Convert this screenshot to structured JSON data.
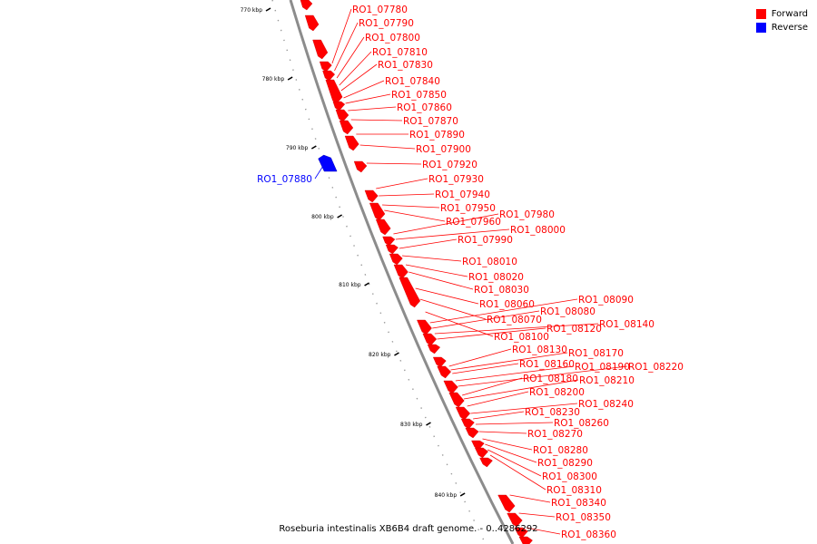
{
  "caption": "Roseburia intestinalis XB6B4 draft genome. - 0..4286292",
  "legend": [
    {
      "label": "Forward",
      "color": "#ff0000"
    },
    {
      "label": "Reverse",
      "color": "#0000ff"
    }
  ],
  "ticks": [
    "770 kbp",
    "780 kbp",
    "790 kbp",
    "800 kbp",
    "810 kbp",
    "820 kbp",
    "830 kbp",
    "840 kbp"
  ],
  "forward_genes": [
    "RO1_07780",
    "RO1_07790",
    "RO1_07800",
    "RO1_07810",
    "RO1_07830",
    "RO1_07840",
    "RO1_07850",
    "RO1_07860",
    "RO1_07870",
    "RO1_07890",
    "RO1_07900",
    "RO1_07920",
    "RO1_07930",
    "RO1_07940",
    "RO1_07950",
    "RO1_07980",
    "RO1_07960",
    "RO1_08000",
    "RO1_07990",
    "RO1_08010",
    "RO1_08020",
    "RO1_08030",
    "RO1_08090",
    "RO1_08060",
    "RO1_08080",
    "RO1_08070",
    "RO1_08140",
    "RO1_08120",
    "RO1_08100",
    "RO1_08130",
    "RO1_08170",
    "RO1_08160",
    "RO1_08190",
    "RO1_08220",
    "RO1_08180",
    "RO1_08210",
    "RO1_08200",
    "RO1_08240",
    "RO1_08230",
    "RO1_08260",
    "RO1_08270",
    "RO1_08280",
    "RO1_08290",
    "RO1_08300",
    "RO1_08310",
    "RO1_08340",
    "RO1_08350",
    "RO1_08360"
  ],
  "reverse_genes": [
    "RO1_07880"
  ]
}
